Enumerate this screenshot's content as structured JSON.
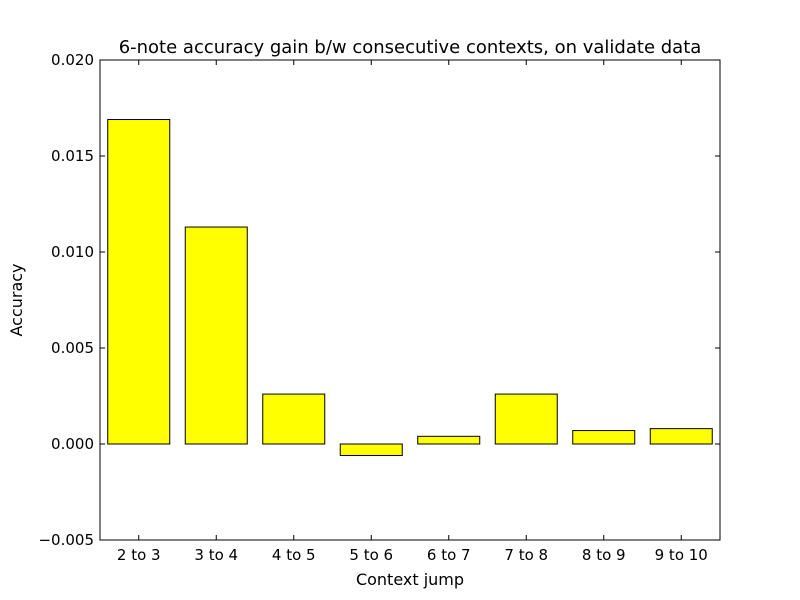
{
  "chart_data": {
    "type": "bar",
    "title": "6-note accuracy gain b/w consecutive contexts, on validate data",
    "xlabel": "Context jump",
    "ylabel": "Accuracy",
    "categories": [
      "2 to 3",
      "3 to 4",
      "4 to 5",
      "5 to 6",
      "6 to 7",
      "7 to 8",
      "8 to 9",
      "9 to 10"
    ],
    "values": [
      0.0169,
      0.0113,
      0.0026,
      -0.0006,
      0.0004,
      0.0026,
      0.0007,
      0.0008
    ],
    "ylim": [
      -0.005,
      0.02
    ],
    "yticks": [
      -0.005,
      0.0,
      0.005,
      0.01,
      0.015,
      0.02
    ],
    "ytick_labels": [
      "−0.005",
      "0.000",
      "0.005",
      "0.010",
      "0.015",
      "0.020"
    ],
    "bar_color": "#ffff00",
    "edge_color": "#000000",
    "grid": false,
    "legend": false
  }
}
